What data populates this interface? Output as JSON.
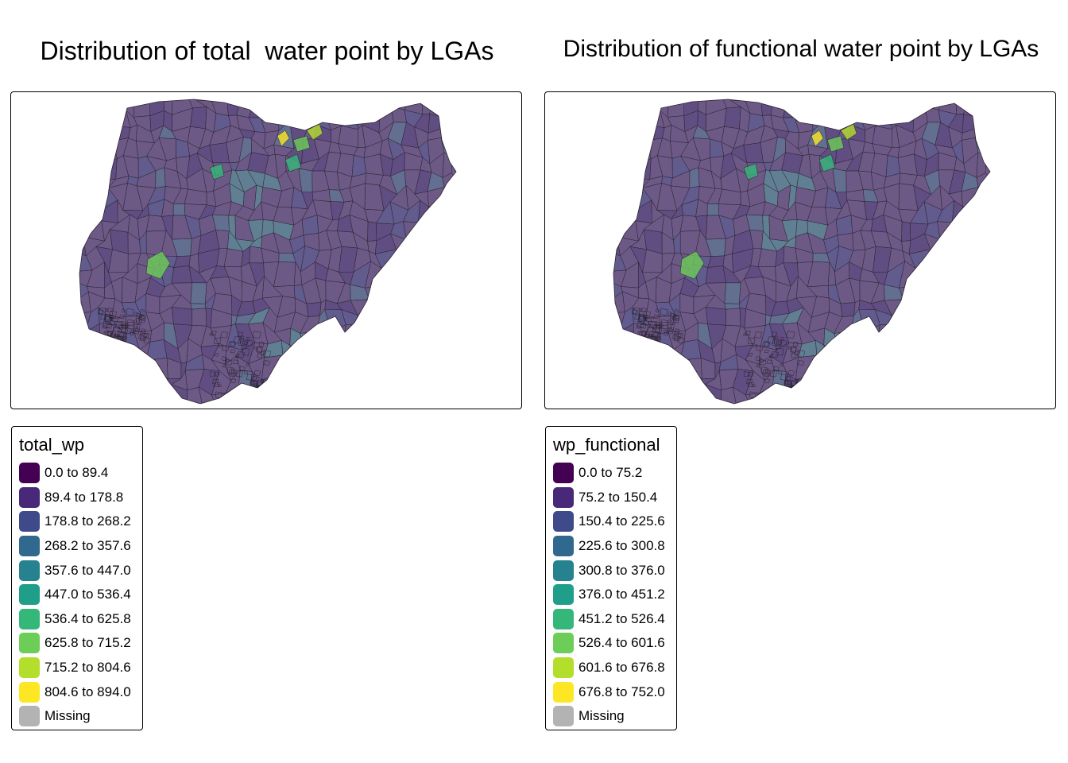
{
  "maps": [
    {
      "title": "Distribution of total  water point by LGAs",
      "legend": {
        "title": "total_wp",
        "items": [
          {
            "label": "0.0 to 89.4",
            "color": "#440154"
          },
          {
            "label": "89.4 to 178.8",
            "color": "#482878"
          },
          {
            "label": "178.8 to 268.2",
            "color": "#3E4A89"
          },
          {
            "label": "268.2 to 357.6",
            "color": "#31688E"
          },
          {
            "label": "357.6 to 447.0",
            "color": "#26828E"
          },
          {
            "label": "447.0 to 536.4",
            "color": "#1F9E89"
          },
          {
            "label": "536.4 to 625.8",
            "color": "#35B779"
          },
          {
            "label": "625.8 to 715.2",
            "color": "#6DCD59"
          },
          {
            "label": "715.2 to 804.6",
            "color": "#B4DE2C"
          },
          {
            "label": "804.6 to 894.0",
            "color": "#FDE725"
          },
          {
            "label": "Missing",
            "color": "#B3B3B3"
          }
        ]
      }
    },
    {
      "title": "Distribution of functional water point by LGAs",
      "legend": {
        "title": "wp_functional",
        "items": [
          {
            "label": "0.0 to 75.2",
            "color": "#440154"
          },
          {
            "label": "75.2 to 150.4",
            "color": "#482878"
          },
          {
            "label": "150.4 to 225.6",
            "color": "#3E4A89"
          },
          {
            "label": "225.6 to 300.8",
            "color": "#31688E"
          },
          {
            "label": "300.8 to 376.0",
            "color": "#26828E"
          },
          {
            "label": "376.0 to 451.2",
            "color": "#1F9E89"
          },
          {
            "label": "451.2 to 526.4",
            "color": "#35B779"
          },
          {
            "label": "526.4 to 601.6",
            "color": "#6DCD59"
          },
          {
            "label": "601.6 to 676.8",
            "color": "#B4DE2C"
          },
          {
            "label": "676.8 to 752.0",
            "color": "#FDE725"
          },
          {
            "label": "Missing",
            "color": "#B3B3B3"
          }
        ]
      }
    }
  ],
  "map_style": {
    "base_fill": "#6E5A85",
    "border_color": "#2B2333",
    "fill_opacity": 0.75
  }
}
